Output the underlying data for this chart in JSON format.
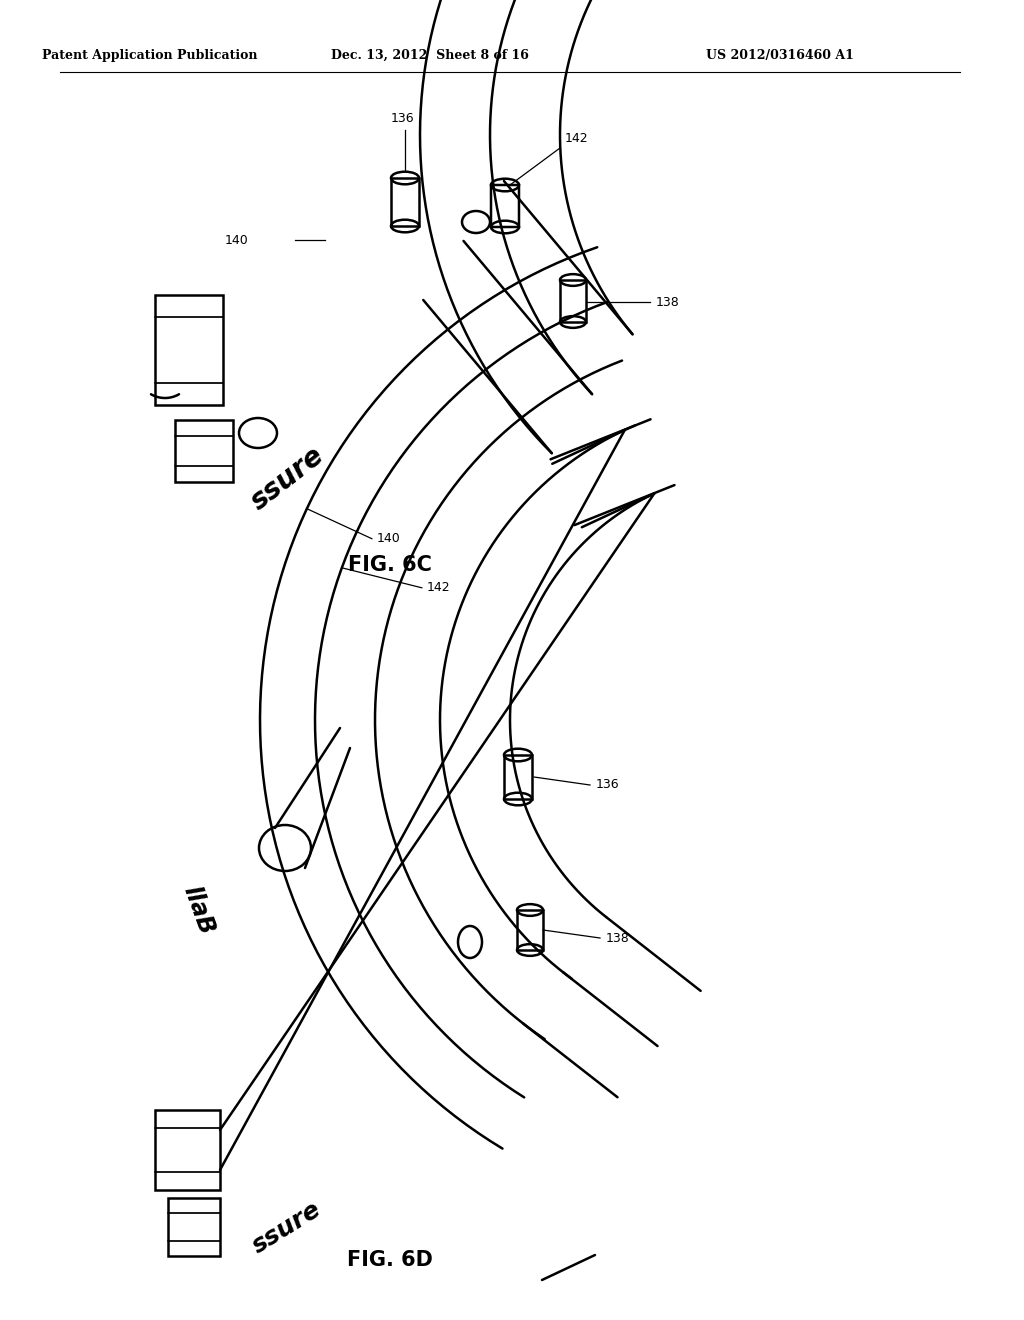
{
  "bg_color": "#ffffff",
  "header_left": "Patent Application Publication",
  "header_mid": "Dec. 13, 2012  Sheet 8 of 16",
  "header_right": "US 2012/0316460 A1",
  "fig_label_6c": "FIG. 6C",
  "fig_label_6d": "FIG. 6D",
  "line_color": "#000000",
  "line_width": 1.8,
  "label_fontsize": 9,
  "header_fontsize": 9,
  "fig_label_fontsize": 15
}
